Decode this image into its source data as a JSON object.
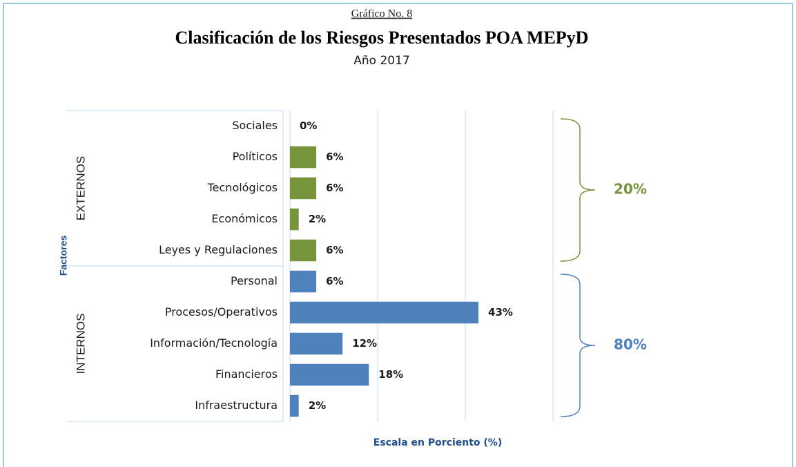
{
  "chart_data": {
    "type": "bar",
    "orientation": "horizontal",
    "super_title": "Gráfico No. 8",
    "title": "Clasificación de los Riesgos Presentados POA MEPyD",
    "subtitle": "Año 2017",
    "y_label": "Factores",
    "x_label": "Escala en Porciento (%)",
    "xlim": [
      0,
      60
    ],
    "xticks": [
      0,
      20,
      40,
      60
    ],
    "grid": true,
    "groups": [
      {
        "name": "EXTERNOS",
        "color": "#77933c",
        "total": 20,
        "total_label": "20%",
        "categories": [
          "Sociales",
          "Políticos",
          "Tecnológicos",
          "Económicos",
          "Leyes y Regulaciones"
        ],
        "values": [
          0,
          6,
          6,
          2,
          6
        ],
        "value_labels": [
          "0%",
          "6%",
          "6%",
          "2%",
          "6%"
        ]
      },
      {
        "name": "INTERNOS",
        "color": "#4f81bd",
        "total": 80,
        "total_label": "80%",
        "categories": [
          "Personal",
          "Procesos/Operativos",
          "Información/Tecnología",
          "Financieros",
          "Infraestructura"
        ],
        "values": [
          6,
          43,
          12,
          18,
          2
        ],
        "value_labels": [
          "6%",
          "43%",
          "12%",
          "18%",
          "2%"
        ]
      }
    ]
  }
}
